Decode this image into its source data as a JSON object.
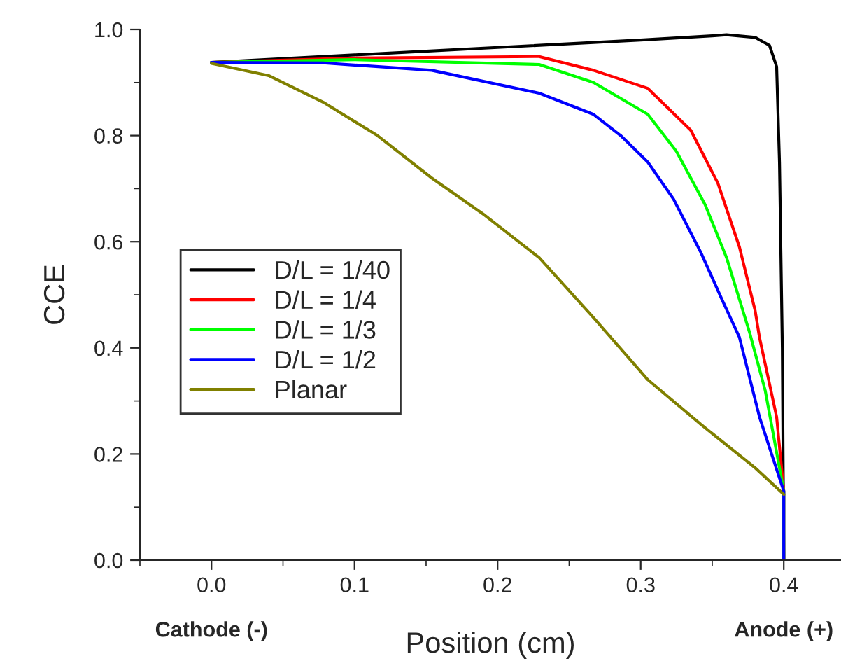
{
  "chart_data": {
    "type": "line",
    "xlabel": "Position (cm)",
    "ylabel": "CCE",
    "xlim": [
      -0.05,
      0.44
    ],
    "xticks": [
      {
        "value": 0,
        "label": "0.0"
      },
      0.1,
      0.2,
      0.3,
      0.4
    ],
    "ylim": [
      0.0,
      1.0
    ],
    "yticks": [
      {
        "value": 0,
        "label": "0.0"
      },
      0.2,
      0.4,
      0.6,
      0.8,
      {
        "value": 1,
        "label": "1.0"
      }
    ],
    "grid": false,
    "legend": "center left",
    "marker": "none",
    "line_style": "solid",
    "annotations": [
      "Cathode (-)",
      "Anode (+)"
    ],
    "series": [
      {
        "name": "D/L = 1/40",
        "color": "#000000",
        "x": [
          0.0,
          0.1,
          0.2,
          0.3,
          0.35,
          0.36,
          0.38,
          0.39,
          0.395,
          0.397,
          0.399,
          0.4
        ],
        "values": [
          0.938,
          0.952,
          0.966,
          0.98,
          0.988,
          0.99,
          0.985,
          0.97,
          0.93,
          0.75,
          0.4,
          0.0
        ]
      },
      {
        "name": "D/L = 1/4",
        "color": "#ff0000",
        "x": [
          0.0,
          0.1,
          0.229,
          0.267,
          0.305,
          0.335,
          0.354,
          0.369,
          0.38,
          0.383,
          0.395,
          0.4,
          0.4
        ],
        "values": [
          0.938,
          0.946,
          0.949,
          0.923,
          0.889,
          0.81,
          0.71,
          0.59,
          0.47,
          0.42,
          0.27,
          0.13,
          0.0
        ]
      },
      {
        "name": "D/L = 1/3",
        "color": "#00ff00",
        "x": [
          0.0,
          0.1,
          0.229,
          0.267,
          0.305,
          0.325,
          0.345,
          0.36,
          0.376,
          0.387,
          0.4,
          0.4
        ],
        "values": [
          0.938,
          0.943,
          0.934,
          0.9,
          0.84,
          0.77,
          0.67,
          0.57,
          0.43,
          0.32,
          0.13,
          0.0
        ]
      },
      {
        "name": "D/L = 1/2",
        "color": "#0000ff",
        "x": [
          0.0,
          0.078,
          0.154,
          0.229,
          0.267,
          0.286,
          0.305,
          0.323,
          0.342,
          0.357,
          0.369,
          0.383,
          0.4,
          0.4
        ],
        "values": [
          0.938,
          0.937,
          0.923,
          0.88,
          0.84,
          0.8,
          0.75,
          0.68,
          0.58,
          0.49,
          0.42,
          0.27,
          0.13,
          0.0
        ]
      },
      {
        "name": "Planar",
        "color": "#808000",
        "x": [
          0.0,
          0.04,
          0.078,
          0.116,
          0.154,
          0.191,
          0.229,
          0.267,
          0.305,
          0.342,
          0.38,
          0.4
        ],
        "values": [
          0.936,
          0.913,
          0.863,
          0.8,
          0.72,
          0.65,
          0.57,
          0.457,
          0.34,
          0.256,
          0.174,
          0.124
        ]
      }
    ]
  }
}
